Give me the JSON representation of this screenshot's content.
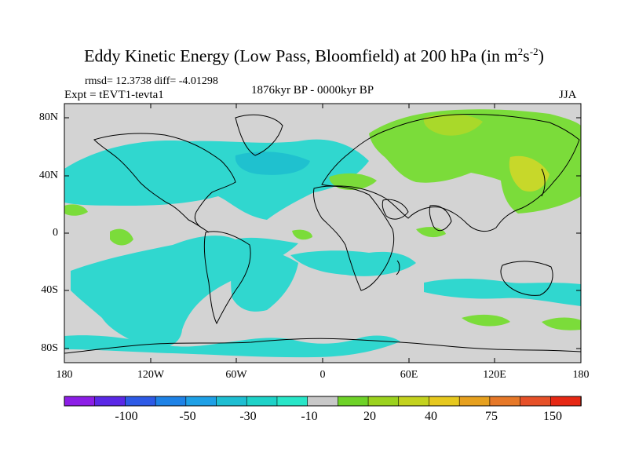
{
  "title": {
    "main": "Eddy Kinetic Energy (Low Pass, Bloomfield) at 200 hPa (in m",
    "sup1": "2",
    "mid": "s",
    "sup2": "-2",
    "end": ")"
  },
  "stats": "rmsd= 12.3738 diff= -4.01298",
  "experiment": "Expt = tEVT1-tevta1",
  "period": "1876kyr BP - 0000kyr BP",
  "season": "JJA",
  "axes": {
    "lat_labels": [
      "80N",
      "40N",
      "0",
      "40S",
      "80S"
    ],
    "lon_labels": [
      "180",
      "120W",
      "60W",
      "0",
      "60E",
      "120E",
      "180"
    ]
  },
  "colorbar": {
    "labels": [
      "-100",
      "-50",
      "-30",
      "-10",
      "20",
      "40",
      "75",
      "150"
    ],
    "colors": [
      "#8c1ee6",
      "#5a28e6",
      "#2d5ae6",
      "#1e82e6",
      "#1ea0e6",
      "#1ebed2",
      "#1ed2c8",
      "#28e6c8",
      "#c8c8c8",
      "#6ed228",
      "#9bd21e",
      "#c3d21e",
      "#e6c81e",
      "#e6a01e",
      "#e67828",
      "#e65028",
      "#e62814"
    ]
  },
  "palette": {
    "neutral": "#d3d3d3",
    "cyan": "#30d7cf",
    "teal": "#1fc1cf",
    "green": "#7bdc3a",
    "light_green": "#a9d92a",
    "yellow_green": "#c7d82a"
  }
}
